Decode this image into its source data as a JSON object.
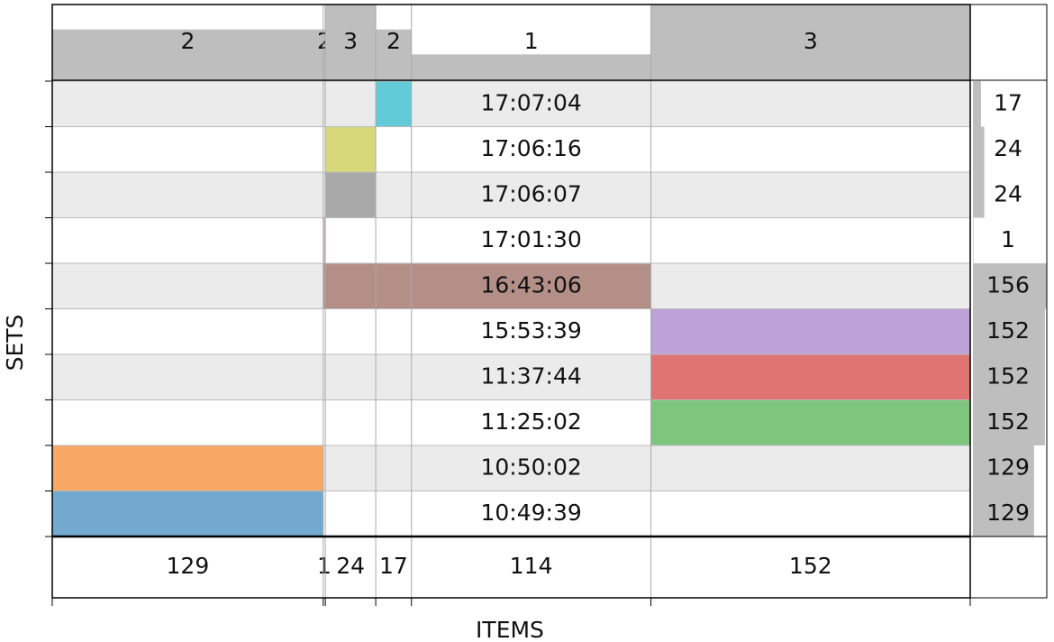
{
  "chart_data": {
    "type": "supervenn",
    "x_label": "ITEMS",
    "y_label": "SETS",
    "chunk_sizes": [
      129,
      1,
      24,
      17,
      114,
      152
    ],
    "chunk_coverage": [
      2,
      2,
      3,
      2,
      1,
      3
    ],
    "sets": [
      {
        "name": "17:07:04",
        "size": 17,
        "color": "#63cbd8",
        "chunks": [
          3
        ]
      },
      {
        "name": "17:06:16",
        "size": 24,
        "color": "#d7d87a",
        "chunks": [
          2
        ]
      },
      {
        "name": "17:06:07",
        "size": 24,
        "color": "#a9a9a9",
        "chunks": [
          2
        ]
      },
      {
        "name": "17:01:30",
        "size": 1,
        "color": "#d7b0c7",
        "chunks": [
          1
        ]
      },
      {
        "name": "16:43:06",
        "size": 156,
        "color": "#b38f88",
        "chunks": [
          1,
          2,
          3,
          4
        ]
      },
      {
        "name": "15:53:39",
        "size": 152,
        "color": "#bea2d7",
        "chunks": [
          5
        ]
      },
      {
        "name": "11:37:44",
        "size": 152,
        "color": "#df7473",
        "chunks": [
          5
        ]
      },
      {
        "name": "11:25:02",
        "size": 152,
        "color": "#7ec57e",
        "chunks": [
          5
        ]
      },
      {
        "name": "10:50:02",
        "size": 129,
        "color": "#f6a864",
        "chunks": [
          0
        ]
      },
      {
        "name": "10:49:39",
        "size": 129,
        "color": "#74a9cf",
        "chunks": [
          0
        ]
      }
    ]
  }
}
